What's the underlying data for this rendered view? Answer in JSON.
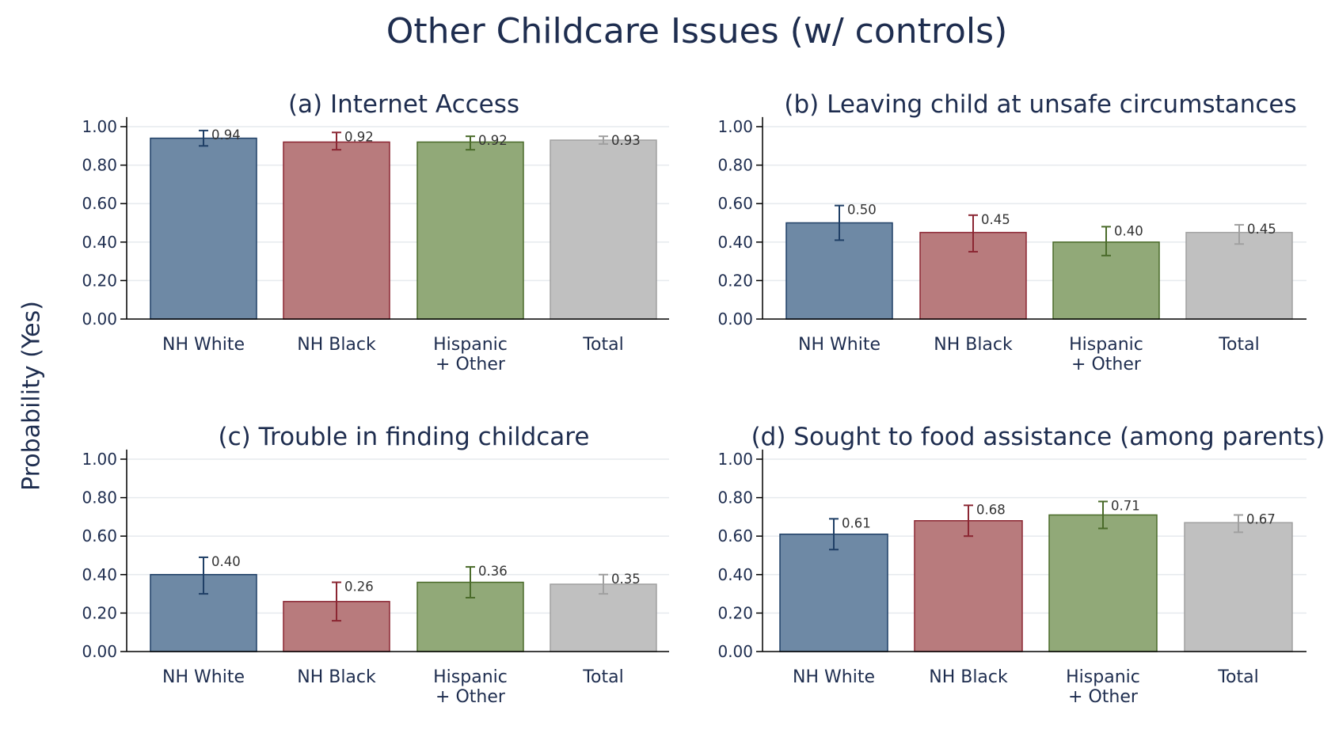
{
  "figure": {
    "title": "Other Childcare Issues (w/ controls)",
    "ylabel": "Probability (Yes)"
  },
  "colors": {
    "NH White": {
      "fill": "#6e89a5",
      "stroke": "#1f3f66"
    },
    "NH Black": {
      "fill": "#b87b7d",
      "stroke": "#8b2632"
    },
    "Hispanic + Other": {
      "fill": "#91a978",
      "stroke": "#4a6b2a"
    },
    "Total": {
      "fill": "#c0c0c0",
      "stroke": "#a0a0a0"
    },
    "axis": "#000000",
    "grid": "#e6eaee"
  },
  "chart_data": [
    {
      "type": "bar",
      "title": "(a) Internet Access",
      "categories": [
        "NH White",
        "NH Black",
        "Hispanic + Other",
        "Total"
      ],
      "category_lines": [
        [
          "NH White"
        ],
        [
          "NH Black"
        ],
        [
          "Hispanic",
          "+ Other"
        ],
        [
          "Total"
        ]
      ],
      "values": [
        0.94,
        0.92,
        0.92,
        0.93
      ],
      "value_labels": [
        "0.94",
        "0.92",
        "0.92",
        "0.93"
      ],
      "ci_low": [
        0.9,
        0.88,
        0.88,
        0.91
      ],
      "ci_high": [
        0.98,
        0.97,
        0.95,
        0.95
      ],
      "ylim": [
        0,
        1.05
      ],
      "yticks": [
        0,
        0.2,
        0.4,
        0.6,
        0.8,
        1.0
      ],
      "ytick_labels": [
        "0.00",
        "0.20",
        "0.40",
        "0.60",
        "0.80",
        "1.00"
      ],
      "grid": true
    },
    {
      "type": "bar",
      "title": "(b) Leaving child at unsafe circumstances",
      "categories": [
        "NH White",
        "NH Black",
        "Hispanic + Other",
        "Total"
      ],
      "category_lines": [
        [
          "NH White"
        ],
        [
          "NH Black"
        ],
        [
          "Hispanic",
          "+ Other"
        ],
        [
          "Total"
        ]
      ],
      "values": [
        0.5,
        0.45,
        0.4,
        0.45
      ],
      "value_labels": [
        "0.50",
        "0.45",
        "0.40",
        "0.45"
      ],
      "ci_low": [
        0.41,
        0.35,
        0.33,
        0.39
      ],
      "ci_high": [
        0.59,
        0.54,
        0.48,
        0.49
      ],
      "ylim": [
        0,
        1.05
      ],
      "yticks": [
        0,
        0.2,
        0.4,
        0.6,
        0.8,
        1.0
      ],
      "ytick_labels": [
        "0.00",
        "0.20",
        "0.40",
        "0.60",
        "0.80",
        "1.00"
      ],
      "grid": true
    },
    {
      "type": "bar",
      "title": "(c) Trouble in finding childcare",
      "categories": [
        "NH White",
        "NH Black",
        "Hispanic + Other",
        "Total"
      ],
      "category_lines": [
        [
          "NH White"
        ],
        [
          "NH Black"
        ],
        [
          "Hispanic",
          "+ Other"
        ],
        [
          "Total"
        ]
      ],
      "values": [
        0.4,
        0.26,
        0.36,
        0.35
      ],
      "value_labels": [
        "0.40",
        "0.26",
        "0.36",
        "0.35"
      ],
      "ci_low": [
        0.3,
        0.16,
        0.28,
        0.3
      ],
      "ci_high": [
        0.49,
        0.36,
        0.44,
        0.4
      ],
      "ylim": [
        0,
        1.05
      ],
      "yticks": [
        0,
        0.2,
        0.4,
        0.6,
        0.8,
        1.0
      ],
      "ytick_labels": [
        "0.00",
        "0.20",
        "0.40",
        "0.60",
        "0.80",
        "1.00"
      ],
      "grid": true
    },
    {
      "type": "bar",
      "title": "(d) Sought to food assistance (among parents)",
      "categories": [
        "NH White",
        "NH Black",
        "Hispanic + Other",
        "Total"
      ],
      "category_lines": [
        [
          "NH White"
        ],
        [
          "NH Black"
        ],
        [
          "Hispanic",
          "+ Other"
        ],
        [
          "Total"
        ]
      ],
      "values": [
        0.61,
        0.68,
        0.71,
        0.67
      ],
      "value_labels": [
        "0.61",
        "0.68",
        "0.71",
        "0.67"
      ],
      "ci_low": [
        0.53,
        0.6,
        0.64,
        0.62
      ],
      "ci_high": [
        0.69,
        0.76,
        0.78,
        0.71
      ],
      "ylim": [
        0,
        1.05
      ],
      "yticks": [
        0,
        0.2,
        0.4,
        0.6,
        0.8,
        1.0
      ],
      "ytick_labels": [
        "0.00",
        "0.20",
        "0.40",
        "0.60",
        "0.80",
        "1.00"
      ],
      "grid": true
    }
  ]
}
